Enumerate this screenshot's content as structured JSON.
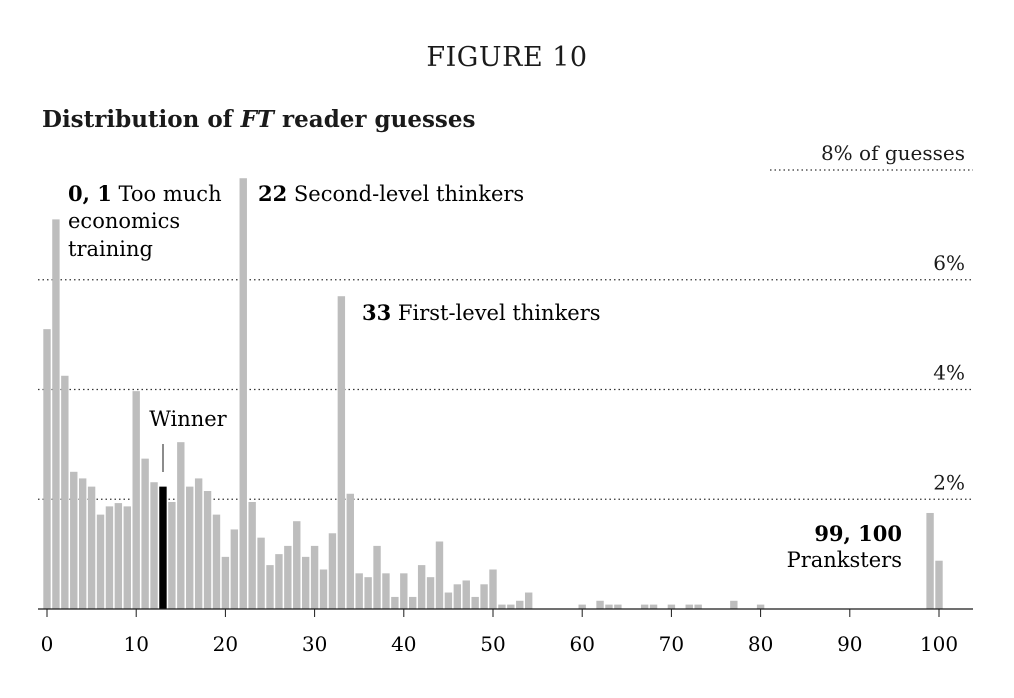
{
  "figure_label": "FIGURE 10",
  "title": {
    "prefix": "Distribution of ",
    "italic": "FT",
    "suffix": " reader guesses"
  },
  "chart_data": {
    "type": "bar",
    "xlim": [
      0,
      100
    ],
    "ylim": [
      0,
      8
    ],
    "x_ticks": [
      0,
      10,
      20,
      30,
      40,
      50,
      60,
      70,
      80,
      90,
      100
    ],
    "gridlines": [
      {
        "value": 2,
        "label": "2%"
      },
      {
        "value": 4,
        "label": "4%"
      },
      {
        "value": 6,
        "label": "6%"
      },
      {
        "value": 8,
        "label": "8% of guesses"
      }
    ],
    "highlight_color": "#000000",
    "bar_color": "#bdbdbd",
    "highlight": 13,
    "bars": [
      {
        "x": 0,
        "y": 5.1
      },
      {
        "x": 1,
        "y": 7.1
      },
      {
        "x": 2,
        "y": 4.25
      },
      {
        "x": 3,
        "y": 2.5
      },
      {
        "x": 4,
        "y": 2.38
      },
      {
        "x": 5,
        "y": 2.23
      },
      {
        "x": 6,
        "y": 1.72
      },
      {
        "x": 7,
        "y": 1.87
      },
      {
        "x": 8,
        "y": 1.93
      },
      {
        "x": 9,
        "y": 1.87
      },
      {
        "x": 10,
        "y": 3.97
      },
      {
        "x": 11,
        "y": 2.74
      },
      {
        "x": 12,
        "y": 2.31
      },
      {
        "x": 13,
        "y": 2.23
      },
      {
        "x": 14,
        "y": 1.95
      },
      {
        "x": 15,
        "y": 3.04
      },
      {
        "x": 16,
        "y": 2.23
      },
      {
        "x": 17,
        "y": 2.38
      },
      {
        "x": 18,
        "y": 2.15
      },
      {
        "x": 19,
        "y": 1.72
      },
      {
        "x": 20,
        "y": 0.95
      },
      {
        "x": 21,
        "y": 1.45
      },
      {
        "x": 22,
        "y": 7.85
      },
      {
        "x": 23,
        "y": 1.95
      },
      {
        "x": 24,
        "y": 1.3
      },
      {
        "x": 25,
        "y": 0.8
      },
      {
        "x": 26,
        "y": 1.0
      },
      {
        "x": 27,
        "y": 1.15
      },
      {
        "x": 28,
        "y": 1.6
      },
      {
        "x": 29,
        "y": 0.95
      },
      {
        "x": 30,
        "y": 1.15
      },
      {
        "x": 31,
        "y": 0.72
      },
      {
        "x": 32,
        "y": 1.38
      },
      {
        "x": 33,
        "y": 5.7
      },
      {
        "x": 34,
        "y": 2.1
      },
      {
        "x": 35,
        "y": 0.65
      },
      {
        "x": 36,
        "y": 0.58
      },
      {
        "x": 37,
        "y": 1.15
      },
      {
        "x": 38,
        "y": 0.65
      },
      {
        "x": 39,
        "y": 0.22
      },
      {
        "x": 40,
        "y": 0.65
      },
      {
        "x": 41,
        "y": 0.22
      },
      {
        "x": 42,
        "y": 0.8
      },
      {
        "x": 43,
        "y": 0.58
      },
      {
        "x": 44,
        "y": 1.23
      },
      {
        "x": 45,
        "y": 0.3
      },
      {
        "x": 46,
        "y": 0.45
      },
      {
        "x": 47,
        "y": 0.52
      },
      {
        "x": 48,
        "y": 0.22
      },
      {
        "x": 49,
        "y": 0.45
      },
      {
        "x": 50,
        "y": 0.72
      },
      {
        "x": 51,
        "y": 0.08
      },
      {
        "x": 52,
        "y": 0.08
      },
      {
        "x": 53,
        "y": 0.15
      },
      {
        "x": 54,
        "y": 0.3
      },
      {
        "x": 60,
        "y": 0.08
      },
      {
        "x": 62,
        "y": 0.15
      },
      {
        "x": 63,
        "y": 0.08
      },
      {
        "x": 64,
        "y": 0.08
      },
      {
        "x": 67,
        "y": 0.08
      },
      {
        "x": 68,
        "y": 0.08
      },
      {
        "x": 70,
        "y": 0.08
      },
      {
        "x": 72,
        "y": 0.08
      },
      {
        "x": 73,
        "y": 0.08
      },
      {
        "x": 77,
        "y": 0.15
      },
      {
        "x": 80,
        "y": 0.08
      },
      {
        "x": 99,
        "y": 1.75
      },
      {
        "x": 100,
        "y": 0.88
      }
    ],
    "annotations": {
      "zero_one": {
        "bold": "0, 1",
        "line1": " Too much",
        "line2": "economics",
        "line3": "training"
      },
      "twentytwo": {
        "bold": "22",
        "text": " Second-level thinkers"
      },
      "thirtythree": {
        "bold": "33",
        "text": " First-level thinkers"
      },
      "winner": "Winner",
      "pranksters": {
        "bold": "99, 100",
        "text": "Pranksters"
      }
    }
  }
}
